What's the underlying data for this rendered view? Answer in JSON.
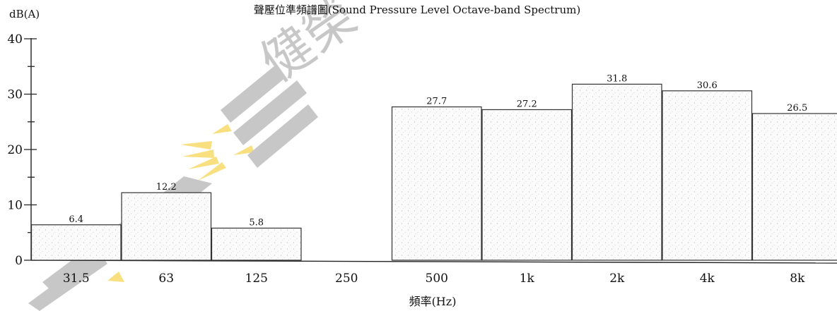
{
  "chart_data": {
    "type": "bar",
    "title": "聲壓位準頻譜圖(Sound Pressure Level Octave-band Spectrum)",
    "ylabel": "dB(A)",
    "xlabel": "頻率(Hz)",
    "ylim": [
      0,
      40
    ],
    "yticks": [
      0,
      10,
      20,
      30,
      40
    ],
    "categories": [
      "31.5",
      "63",
      "125",
      "250",
      "500",
      "1k",
      "2k",
      "4k",
      "8k"
    ],
    "values": [
      6.4,
      12.2,
      5.8,
      null,
      27.7,
      27.2,
      31.8,
      30.6,
      26.5
    ],
    "data_labels": [
      "6.4",
      "12.2",
      "5.8",
      "",
      "27.7",
      "27.2",
      "31.8",
      "30.6",
      "26.5"
    ],
    "grid": false,
    "legend": "none"
  },
  "watermark": {
    "text": "健榮",
    "colors": {
      "gray": "#9a9a9a",
      "yellow": "#f2c619"
    }
  }
}
